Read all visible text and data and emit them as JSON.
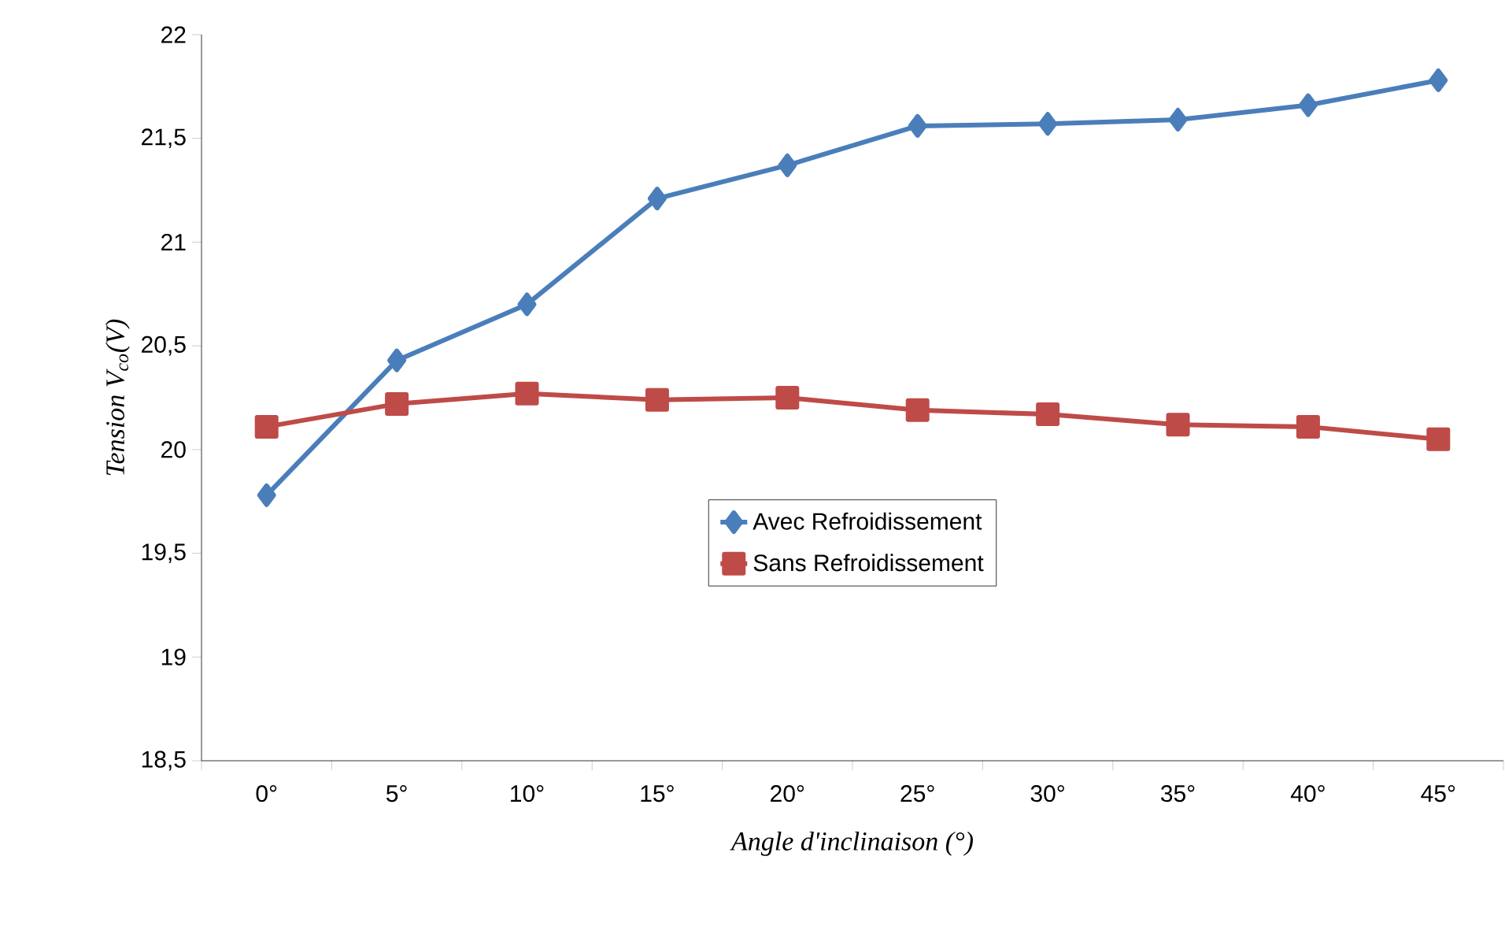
{
  "chart_data": {
    "type": "line",
    "xlabel": "*Angle d'inclinaison (°)*",
    "ylabel": "*Tension V$_{co}$(V)*",
    "categories": [
      "0°",
      "5°",
      "10°",
      "15°",
      "20°",
      "25°",
      "30°",
      "35°",
      "40°",
      "45°"
    ],
    "series": [
      {
        "name": "Avec Refroidissement",
        "color": "#4a7ebb",
        "marker": "diamond",
        "values": [
          19.78,
          20.43,
          20.7,
          21.21,
          21.37,
          21.56,
          21.57,
          21.59,
          21.66,
          21.78
        ]
      },
      {
        "name": "Sans Refroidissement",
        "color": "#be4b48",
        "marker": "square",
        "values": [
          20.11,
          20.22,
          20.27,
          20.24,
          20.25,
          20.19,
          20.17,
          20.12,
          20.11,
          20.05
        ]
      }
    ],
    "ylim": [
      18.5,
      22
    ],
    "yticks": [
      {
        "value": 18.5,
        "label": "18,5"
      },
      19,
      {
        "value": 19.5,
        "label": "19,5"
      },
      20,
      {
        "value": 20.5,
        "label": "20,5"
      },
      21,
      {
        "value": 21.5,
        "label": "21,5"
      },
      22
    ],
    "grid": false,
    "legend": "center",
    "line_style": "solid"
  }
}
